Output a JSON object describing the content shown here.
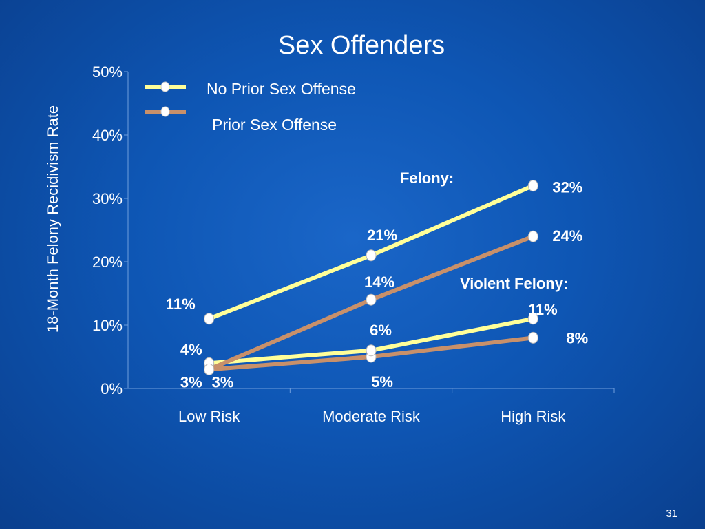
{
  "chart_data": {
    "type": "line",
    "title": "Sex Offenders",
    "ylabel": "18-Month Felony Recidivism Rate",
    "xlabel": "",
    "categories": [
      "Low Risk",
      "Moderate Risk",
      "High Risk"
    ],
    "ylim": [
      0,
      50
    ],
    "yticks": [
      "0%",
      "10%",
      "20%",
      "30%",
      "40%",
      "50%"
    ],
    "legend_position": "top-left",
    "grid": false,
    "series": [
      {
        "name": "No Prior Sex Offense",
        "group": "Felony",
        "color": "#ffff99",
        "values": [
          11,
          21,
          32
        ],
        "labels": [
          "11%",
          "21%",
          "32%"
        ]
      },
      {
        "name": "Prior Sex Offense",
        "group": "Felony",
        "color": "#c8906a",
        "values": [
          3,
          14,
          24
        ],
        "labels": [
          "3%",
          "14%",
          "24%"
        ]
      },
      {
        "name": "No Prior Sex Offense",
        "group": "Violent Felony",
        "color": "#ffff99",
        "values": [
          4,
          6,
          11
        ],
        "labels": [
          "4%",
          "6%",
          "11%"
        ]
      },
      {
        "name": "Prior Sex Offense",
        "group": "Violent Felony",
        "color": "#c8906a",
        "values": [
          3,
          5,
          8
        ],
        "labels": [
          "3%",
          "5%",
          "8%"
        ]
      }
    ],
    "annotations": [
      "Felony:",
      "Violent Felony:"
    ],
    "legend": [
      {
        "label": "No Prior Sex Offense",
        "color": "#ffff99"
      },
      {
        "label": "Prior Sex Offense",
        "color": "#c8906a"
      }
    ]
  },
  "page_number": "31"
}
